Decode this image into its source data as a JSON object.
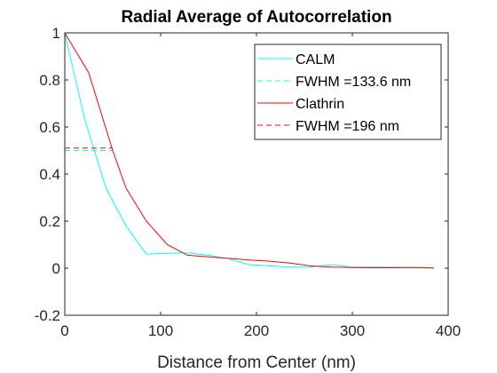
{
  "chart_data": {
    "type": "line",
    "title": "Radial Average of Autocorrelation",
    "xlabel": "Distance from Center (nm)",
    "ylabel": "",
    "xlim": [
      0,
      400
    ],
    "ylim": [
      -0.2,
      1
    ],
    "xticks": [
      0,
      100,
      200,
      300,
      400
    ],
    "yticks": [
      -0.2,
      0,
      0.2,
      0.4,
      0.6,
      0.8,
      1
    ],
    "xtick_labels": [
      "0",
      "100",
      "200",
      "300",
      "400"
    ],
    "ytick_labels": [
      "-0.2",
      "0",
      "0.2",
      "0.4",
      "0.6",
      "0.8",
      "1"
    ],
    "grid": false,
    "legend_position": "top-right",
    "series": [
      {
        "name": "CALM",
        "color": "#00ffff",
        "style": "solid",
        "x": [
          0,
          21,
          43,
          64,
          85,
          107,
          128,
          150,
          171,
          192,
          214,
          235,
          256,
          278,
          299,
          320,
          342,
          363,
          385
        ],
        "y": [
          1,
          0.63,
          0.34,
          0.18,
          0.06,
          0.063,
          0.065,
          0.055,
          0.04,
          0.015,
          0.01,
          0.005,
          0.005,
          0.015,
          0.005,
          0.005,
          0.005,
          0.002,
          0.001
        ]
      },
      {
        "name": "FWHM =133.6 nm",
        "color": "#00ffff",
        "style": "dashed",
        "x": [
          0,
          50
        ],
        "y": [
          0.5,
          0.5
        ]
      },
      {
        "name": "Clathrin",
        "color": "#ff0000",
        "style": "solid",
        "x": [
          0,
          25,
          50,
          64,
          85,
          107,
          128,
          150,
          171,
          192,
          214,
          235,
          256,
          278,
          299,
          320,
          342,
          363,
          385
        ],
        "y": [
          1,
          0.83,
          0.5,
          0.34,
          0.2,
          0.1,
          0.055,
          0.048,
          0.042,
          0.035,
          0.03,
          0.022,
          0.01,
          0.005,
          0.003,
          0.002,
          0.002,
          0.003,
          0.001
        ]
      },
      {
        "name": "FWHM =196 nm",
        "color": "#ff0000",
        "style": "dashed",
        "x": [
          0,
          50
        ],
        "y": [
          0.51,
          0.51
        ]
      }
    ]
  }
}
